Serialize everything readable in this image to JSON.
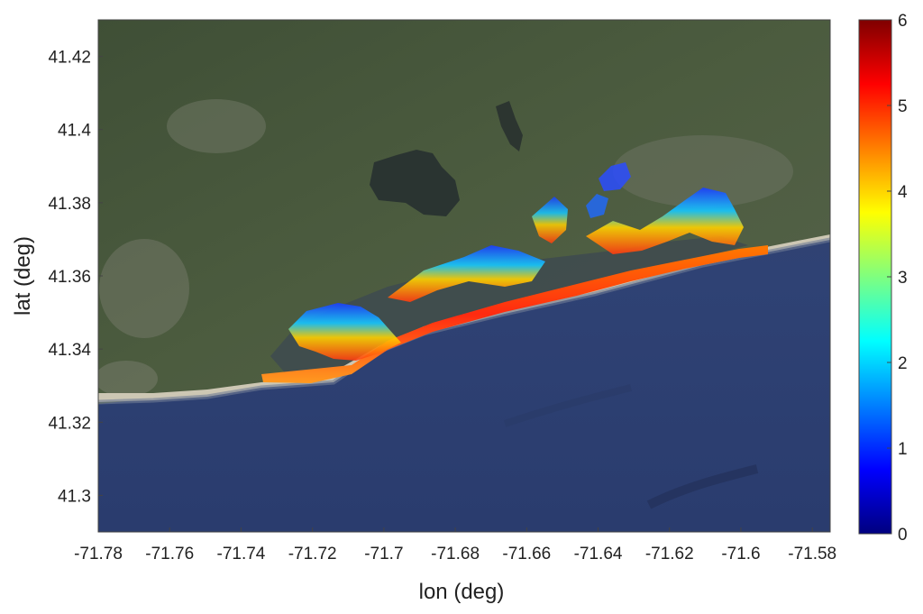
{
  "chart_data": {
    "type": "heatmap",
    "title": "",
    "xlabel": "lon (deg)",
    "ylabel": "lat (deg)",
    "xlim": [
      -71.78,
      -71.575
    ],
    "ylim": [
      41.29,
      41.43
    ],
    "x_ticks": [
      "-71.78",
      "-71.76",
      "-71.74",
      "-71.72",
      "-71.7",
      "-71.68",
      "-71.66",
      "-71.64",
      "-71.62",
      "-71.6",
      "-71.58"
    ],
    "x_tick_values": [
      -71.78,
      -71.76,
      -71.74,
      -71.72,
      -71.7,
      -71.68,
      -71.66,
      -71.64,
      -71.62,
      -71.6,
      -71.58
    ],
    "y_ticks": [
      "41.3",
      "41.32",
      "41.34",
      "41.36",
      "41.38",
      "41.4",
      "41.42"
    ],
    "y_tick_values": [
      41.3,
      41.32,
      41.34,
      41.36,
      41.38,
      41.4,
      41.42
    ],
    "colorbar": {
      "ticks": [
        "0",
        "1",
        "2",
        "3",
        "4",
        "5",
        "6"
      ],
      "tick_values": [
        0,
        1,
        2,
        3,
        4,
        5,
        6
      ],
      "range": [
        0,
        6
      ],
      "colormap": "jet",
      "colors": [
        "#00007f",
        "#0000ff",
        "#007fff",
        "#00ffff",
        "#7fff7f",
        "#ffff00",
        "#ff7f00",
        "#ff0000",
        "#7f0000"
      ]
    },
    "basemap": "satellite imagery",
    "colors": {
      "land": "#4a5a3c",
      "ocean": "#2f4170",
      "beach": "#cdc7b4"
    }
  }
}
